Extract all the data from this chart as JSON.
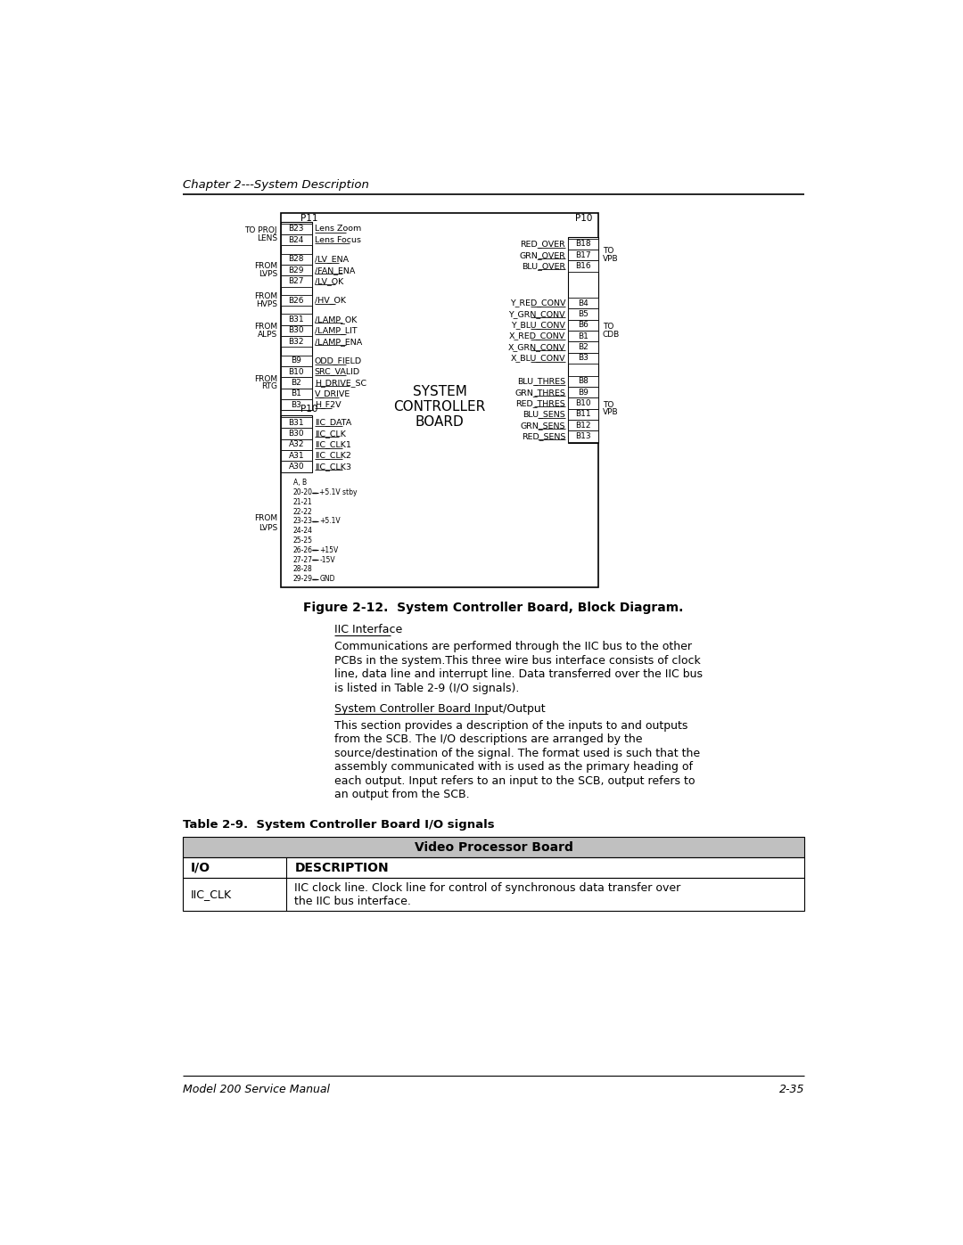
{
  "page_title": "Chapter 2---System Description",
  "figure_title": "Figure 2-12.  System Controller Board, Block Diagram.",
  "bg_color": "#ffffff",
  "left_p11_pins": [
    {
      "pin": "B23",
      "signal": "Lens Zoom"
    },
    {
      "pin": "B24",
      "signal": "Lens Focus"
    },
    {
      "pin": "B28",
      "signal": "/LV_ENA"
    },
    {
      "pin": "B29",
      "signal": "/FAN_ENA"
    },
    {
      "pin": "B27",
      "signal": "/LV_OK"
    },
    {
      "pin": "B26",
      "signal": "/HV_OK"
    },
    {
      "pin": "B31",
      "signal": "/LAMP_OK"
    },
    {
      "pin": "B30",
      "signal": "/LAMP_LIT"
    },
    {
      "pin": "B32",
      "signal": "/LAMP_ENA"
    },
    {
      "pin": "B9",
      "signal": "ODD_FIELD"
    },
    {
      "pin": "B10",
      "signal": "SRC_VALID"
    },
    {
      "pin": "B2",
      "signal": "H_DRIVE_SC"
    },
    {
      "pin": "B1",
      "signal": "V_DRIVE"
    },
    {
      "pin": "B3",
      "signal": "H_F2V"
    }
  ],
  "left_p11_groups": [
    {
      "indices": [
        0,
        1
      ],
      "label": "TO PROJ\nLENS"
    },
    {
      "indices": [
        2,
        3,
        4
      ],
      "label": "FROM\nLVPS"
    },
    {
      "indices": [
        5
      ],
      "label": "FROM\nHVPS"
    },
    {
      "indices": [
        6,
        7,
        8
      ],
      "label": "FROM\nALPS"
    },
    {
      "indices": [
        9,
        10,
        11,
        12,
        13
      ],
      "label": "FROM\nRTG"
    }
  ],
  "left_p10_pins": [
    {
      "pin": "B31",
      "signal": "IIC_DATA"
    },
    {
      "pin": "B30",
      "signal": "IIC_CLK"
    },
    {
      "pin": "A32",
      "signal": "IIC_CLK1"
    },
    {
      "pin": "A31",
      "signal": "IIC_CLK2"
    },
    {
      "pin": "A30",
      "signal": "IIC_CLK3"
    }
  ],
  "power_rows": [
    [
      "A, B",
      ""
    ],
    [
      "20-20",
      "+5.1V stby"
    ],
    [
      "21-21",
      ""
    ],
    [
      "22-22",
      ""
    ],
    [
      "23-23",
      "+5.1V"
    ],
    [
      "24-24",
      ""
    ],
    [
      "25-25",
      ""
    ],
    [
      "26-26",
      "+15V"
    ],
    [
      "27-27",
      "-15V"
    ],
    [
      "28-28",
      ""
    ],
    [
      "29-29",
      "GND"
    ]
  ],
  "right_p10_top_pins": [
    {
      "pin": "B18",
      "signal": "RED_OVER"
    },
    {
      "pin": "B17",
      "signal": "GRN_OVER"
    },
    {
      "pin": "B16",
      "signal": "BLU_OVER"
    }
  ],
  "right_p10_top_label": "TO\nVPB",
  "right_p10_mid_pins": [
    {
      "pin": "B4",
      "signal": "Y_RED_CONV"
    },
    {
      "pin": "B5",
      "signal": "Y_GRN_CONV"
    },
    {
      "pin": "B6",
      "signal": "Y_BLU_CONV"
    },
    {
      "pin": "B1",
      "signal": "X_RED_CONV"
    },
    {
      "pin": "B2",
      "signal": "X_GRN_CONV"
    },
    {
      "pin": "B3",
      "signal": "X_BLU_CONV"
    }
  ],
  "right_p10_mid_label": "TO\nCDB",
  "right_p10_bot_pins": [
    {
      "pin": "B8",
      "signal": "BLU_THRES"
    },
    {
      "pin": "B9",
      "signal": "GRN_THRES"
    },
    {
      "pin": "B10",
      "signal": "RED_THRES"
    },
    {
      "pin": "B11",
      "signal": "BLU_SENS"
    },
    {
      "pin": "B12",
      "signal": "GRN_SENS"
    },
    {
      "pin": "B13",
      "signal": "RED_SENS"
    }
  ],
  "right_p10_bot_label": "TO\nVPB",
  "center_text": [
    "SYSTEM",
    "CONTROLLER",
    "BOARD"
  ],
  "iic_title": "IIC Interface",
  "iic_body": "Communications are performed through the IIC bus to the other\nPCBs in the system.This three wire bus interface consists of clock\nline, data line and interrupt line. Data transferred over the IIC bus\nis listed in Table 2-9 (I/O signals).",
  "scb_title": "System Controller Board Input/Output ",
  "scb_body": "This section provides a description of the inputs to and outputs\nfrom the SCB. The I/O descriptions are arranged by the\nsource/destination of the signal. The format used is such that the\nassembly communicated with is used as the primary heading of\neach output. Input refers to an input to the SCB, output refers to\nan output from the SCB.",
  "table_label": "Table 2-9.  System Controller Board I/O signals",
  "table_vpb_header": "Video Processor Board",
  "table_col1": "I/O",
  "table_col2": "DESCRIPTION",
  "table_d1_col1": "IIC_CLK",
  "table_d1_col2": "IIC clock line. Clock line for control of synchronous data transfer over\nthe IIC bus interface.",
  "footer_left": "Model 200 Service Manual",
  "footer_right": "2-35"
}
